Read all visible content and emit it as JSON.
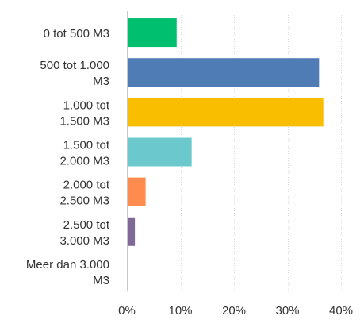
{
  "chart_data": {
    "type": "bar",
    "orientation": "horizontal",
    "categories": [
      [
        "0 tot 500 M3"
      ],
      [
        "500 tot 1.000",
        "M3"
      ],
      [
        "1.000 tot",
        "1.500 M3"
      ],
      [
        "1.500 tot",
        "2.000 M3"
      ],
      [
        "2.000 tot",
        "2.500 M3"
      ],
      [
        "2.500 tot",
        "3.000 M3"
      ],
      [
        "Meer dan 3.000",
        "M3"
      ]
    ],
    "values": [
      9.3,
      35.9,
      36.7,
      12.1,
      3.5,
      1.5,
      0
    ],
    "colors": [
      "#00bf6f",
      "#507cb6",
      "#f9be00",
      "#6bc8cd",
      "#ff8b4f",
      "#7f6a97",
      "#507cb6"
    ],
    "xlim": [
      0,
      40
    ],
    "xticks": [
      0,
      10,
      20,
      30,
      40
    ],
    "xtick_labels": [
      "0%",
      "10%",
      "20%",
      "30%",
      "40%"
    ],
    "grid": true,
    "title": "",
    "xlabel": "",
    "ylabel": ""
  }
}
